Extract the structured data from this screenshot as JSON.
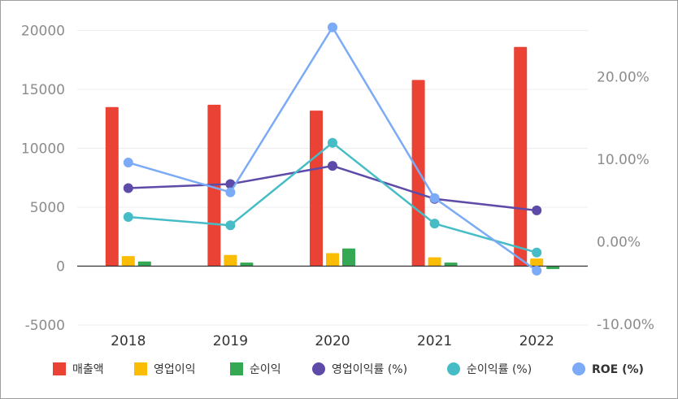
{
  "chart_data": {
    "type": "bar",
    "categories": [
      "2018",
      "2019",
      "2020",
      "2021",
      "2022"
    ],
    "bar_series": [
      {
        "name": "매출액",
        "color": "#ea4335",
        "values": [
          13500,
          13700,
          13200,
          15800,
          18600
        ]
      },
      {
        "name": "영업이익",
        "color": "#fbbc04",
        "values": [
          850,
          950,
          1100,
          750,
          650
        ]
      },
      {
        "name": "순이익",
        "color": "#34a853",
        "values": [
          400,
          300,
          1500,
          300,
          -250
        ]
      }
    ],
    "line_series": [
      {
        "name": "영업이익률 (%)",
        "color": "#5e4aa8",
        "values": [
          6.5,
          7.0,
          9.2,
          5.2,
          3.8
        ]
      },
      {
        "name": "순이익률 (%)",
        "color": "#46bdc6",
        "values": [
          3.0,
          2.0,
          12.0,
          2.2,
          -1.3
        ]
      },
      {
        "name": "ROE (%)",
        "color": "#7baaf7",
        "values": [
          9.6,
          6.0,
          26.0,
          5.3,
          -3.5
        ]
      }
    ],
    "y_left": {
      "ticks": [
        "-5000",
        "0",
        "5000",
        "10000",
        "15000",
        "20000"
      ],
      "ylim": [
        -5000,
        20000
      ]
    },
    "y_right": {
      "ticks": [
        "-10.00%",
        "0.00%",
        "10.00%",
        "20.00%"
      ],
      "ylim": [
        -10,
        25
      ]
    },
    "grid": true,
    "legend_position": "bottom"
  }
}
